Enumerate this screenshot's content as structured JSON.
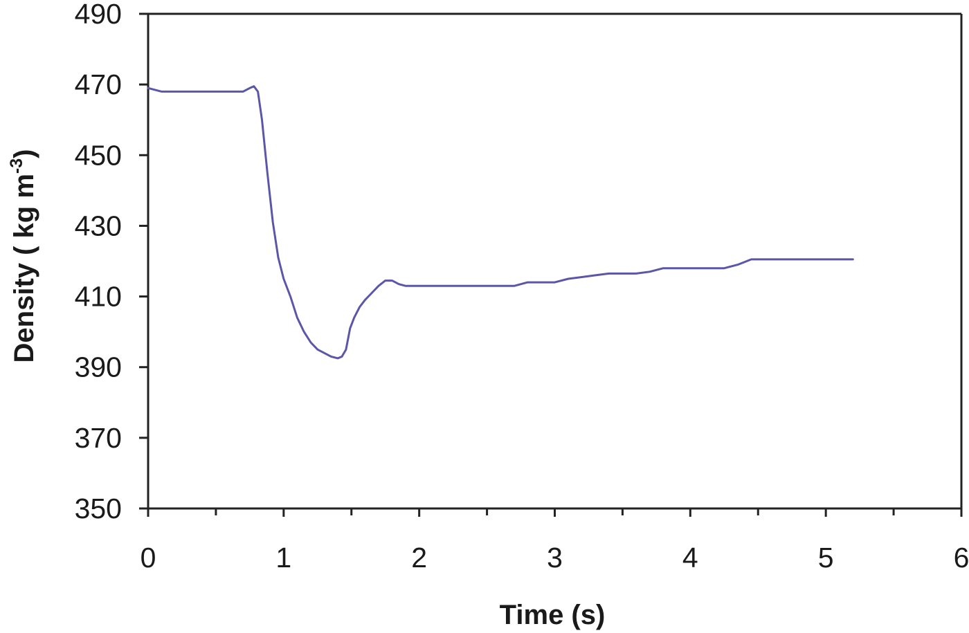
{
  "chart_data": {
    "type": "line",
    "title": "",
    "xlabel": "Time (s)",
    "ylabel_main": "Density ( kg m",
    "ylabel_sup": "-3",
    "ylabel_close": ")",
    "xlim": [
      0,
      6
    ],
    "ylim": [
      350,
      490
    ],
    "x_ticks": [
      0,
      1,
      2,
      3,
      4,
      5,
      6
    ],
    "x_minor_ticks": [
      0.5,
      1.5,
      2.5,
      3.5,
      4.5,
      5.5
    ],
    "y_ticks": [
      350,
      370,
      390,
      410,
      430,
      450,
      470,
      490
    ],
    "grid": false,
    "legend": "none",
    "line_color": "#5a56a8",
    "series": [
      {
        "x": [
          0.0,
          0.1,
          0.3,
          0.5,
          0.7,
          0.75,
          0.78,
          0.81,
          0.84,
          0.88,
          0.92,
          0.96,
          1.0,
          1.05,
          1.1,
          1.15,
          1.2,
          1.25,
          1.3,
          1.35,
          1.4,
          1.43,
          1.46,
          1.49,
          1.52,
          1.56,
          1.6,
          1.65,
          1.7,
          1.75,
          1.8,
          1.85,
          1.9,
          2.0,
          2.2,
          2.4,
          2.7,
          2.8,
          3.0,
          3.1,
          3.2,
          3.3,
          3.4,
          3.6,
          3.7,
          3.8,
          4.0,
          4.25,
          4.35,
          4.45,
          4.6,
          4.8,
          5.0,
          5.2
        ],
        "y": [
          469,
          468,
          468,
          468,
          468,
          469,
          469.5,
          468,
          460,
          445,
          431,
          421,
          415,
          410,
          404,
          400,
          397,
          395,
          394,
          393,
          392.5,
          393,
          395,
          401,
          404,
          407,
          409,
          411,
          413,
          414.5,
          414.5,
          413.5,
          413,
          413,
          413,
          413,
          413,
          414,
          414,
          415,
          415.5,
          416,
          416.5,
          416.5,
          417,
          418,
          418,
          418,
          419,
          420.5,
          420.5,
          420.5,
          420.5,
          420.5
        ]
      }
    ]
  }
}
